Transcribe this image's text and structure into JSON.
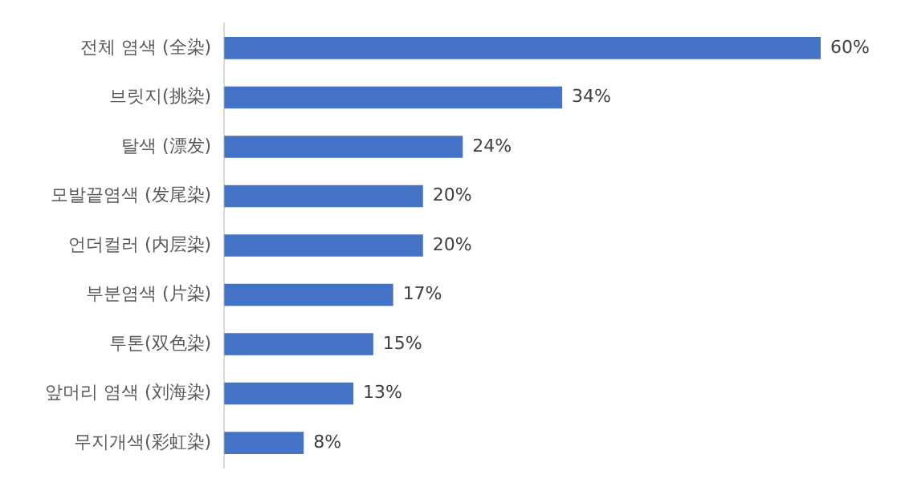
{
  "chart_data": {
    "type": "bar",
    "orientation": "horizontal",
    "categories": [
      "전체 염색 (全染)",
      "브릿지(挑染)",
      "탈색 (漂发)",
      "모발끝염색 (发尾染)",
      "언더컬러 (内层染)",
      "부분염색 (片染)",
      "투톤(双色染)",
      "앞머리 염색 (刘海染)",
      "무지개색(彩虹染)"
    ],
    "values": [
      60,
      34,
      24,
      20,
      20,
      17,
      15,
      13,
      8
    ],
    "value_labels": [
      "60%",
      "34%",
      "24%",
      "20%",
      "20%",
      "17%",
      "15%",
      "13%",
      "8%"
    ],
    "color": "#4472c4",
    "legend": false
  }
}
